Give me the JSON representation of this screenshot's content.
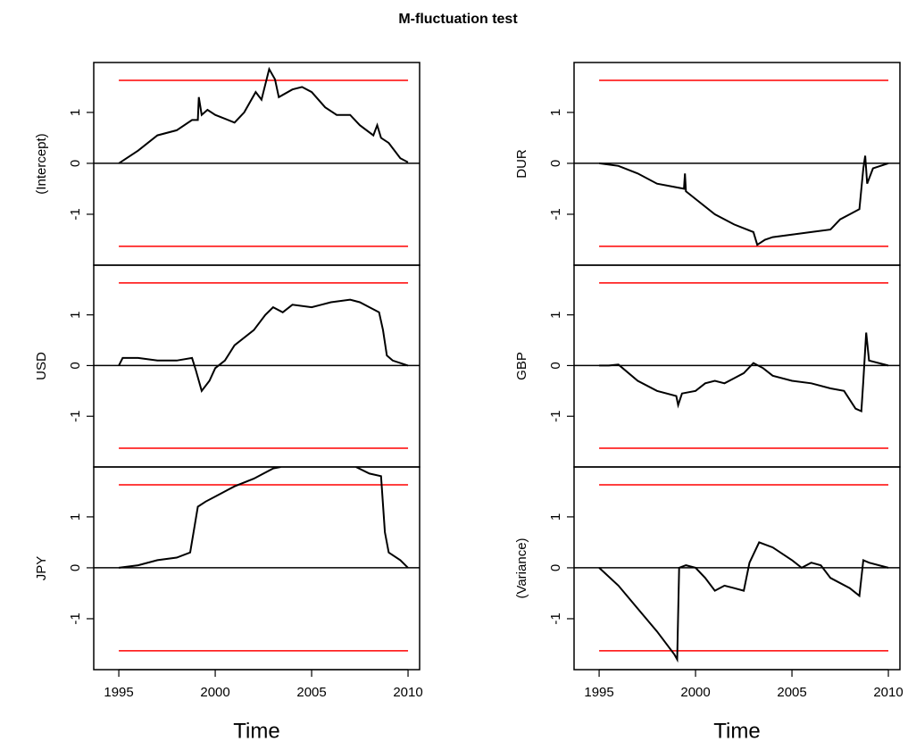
{
  "title": "M-fluctuation test",
  "chart_data": [
    {
      "type": "line",
      "ylabel": "(Intercept)",
      "color": "#000000",
      "boundary": [
        -1.63,
        1.63
      ],
      "boundary_color": "#ff0000",
      "reference_line": 0,
      "xlim": [
        1993.7,
        2010.6
      ],
      "ylim": [
        -2,
        1.98
      ],
      "yticks": [
        -1,
        0,
        1
      ],
      "x": [
        1995,
        1996,
        1997,
        1998,
        1998.8,
        1999.1,
        1999.15,
        1999.3,
        1999.6,
        2000,
        2001,
        2001.5,
        2002.1,
        2002.4,
        2002.8,
        2003.1,
        2003.3,
        2004,
        2004.5,
        2005,
        2005.7,
        2006.3,
        2007,
        2007.5,
        2008.2,
        2008.4,
        2008.6,
        2009,
        2009.6,
        2010
      ],
      "values": [
        0,
        0.25,
        0.55,
        0.65,
        0.85,
        0.85,
        1.3,
        0.95,
        1.05,
        0.95,
        0.8,
        1.0,
        1.4,
        1.25,
        1.85,
        1.65,
        1.3,
        1.45,
        1.5,
        1.4,
        1.1,
        0.95,
        0.95,
        0.75,
        0.55,
        0.75,
        0.5,
        0.4,
        0.1,
        0.02
      ]
    },
    {
      "type": "line",
      "ylabel": "DUR",
      "color": "#000000",
      "boundary": [
        -1.63,
        1.63
      ],
      "boundary_color": "#ff0000",
      "reference_line": 0,
      "xlim": [
        1993.7,
        2010.6
      ],
      "ylim": [
        -2,
        1.98
      ],
      "yticks": [
        -1,
        0,
        1
      ],
      "x": [
        1995,
        1996,
        1997,
        1998,
        1999.4,
        1999.45,
        1999.5,
        2000,
        2001,
        2002,
        2003,
        2003.2,
        2003.6,
        2004,
        2005,
        2006,
        2007,
        2007.5,
        2008,
        2008.5,
        2008.7,
        2008.8,
        2008.9,
        2009.2,
        2010
      ],
      "values": [
        0,
        -0.05,
        -0.2,
        -0.4,
        -0.5,
        -0.2,
        -0.55,
        -0.7,
        -1.0,
        -1.2,
        -1.35,
        -1.6,
        -1.5,
        -1.45,
        -1.4,
        -1.35,
        -1.3,
        -1.1,
        -1.0,
        -0.9,
        -0.1,
        0.15,
        -0.4,
        -0.1,
        0
      ]
    },
    {
      "type": "line",
      "ylabel": "USD",
      "color": "#000000",
      "boundary": [
        -1.63,
        1.63
      ],
      "boundary_color": "#ff0000",
      "reference_line": 0,
      "xlim": [
        1993.7,
        2010.6
      ],
      "ylim": [
        -2,
        1.98
      ],
      "yticks": [
        -1,
        0,
        1
      ],
      "x": [
        1995,
        1995.2,
        1996,
        1997,
        1998,
        1998.8,
        1999,
        1999.3,
        1999.7,
        2000,
        2000.5,
        2001,
        2002,
        2002.6,
        2003,
        2003.5,
        2004,
        2005,
        2005.5,
        2006,
        2007,
        2007.5,
        2008,
        2008.5,
        2008.7,
        2008.9,
        2009.2,
        2010
      ],
      "values": [
        0,
        0.15,
        0.15,
        0.1,
        0.1,
        0.15,
        -0.1,
        -0.5,
        -0.3,
        -0.05,
        0.1,
        0.4,
        0.7,
        1.0,
        1.15,
        1.05,
        1.2,
        1.15,
        1.2,
        1.25,
        1.3,
        1.25,
        1.15,
        1.05,
        0.7,
        0.2,
        0.1,
        0
      ]
    },
    {
      "type": "line",
      "ylabel": "GBP",
      "color": "#000000",
      "boundary": [
        -1.63,
        1.63
      ],
      "boundary_color": "#ff0000",
      "reference_line": 0,
      "xlim": [
        1993.7,
        2010.6
      ],
      "ylim": [
        -2,
        1.98
      ],
      "yticks": [
        -1,
        0,
        1
      ],
      "x": [
        1995,
        1995.5,
        1996,
        1997,
        1998,
        1999,
        1999.1,
        1999.3,
        2000,
        2000.5,
        2001,
        2001.5,
        2002,
        2002.5,
        2003,
        2003.5,
        2004,
        2005,
        2006,
        2007,
        2007.7,
        2008.3,
        2008.6,
        2008.7,
        2008.85,
        2009,
        2010
      ],
      "values": [
        0,
        0,
        0.02,
        -0.3,
        -0.5,
        -0.6,
        -0.78,
        -0.55,
        -0.5,
        -0.35,
        -0.3,
        -0.35,
        -0.25,
        -0.15,
        0.05,
        -0.05,
        -0.2,
        -0.3,
        -0.35,
        -0.45,
        -0.5,
        -0.85,
        -0.9,
        -0.3,
        0.65,
        0.1,
        0
      ]
    },
    {
      "type": "line",
      "ylabel": "JPY",
      "xlabel": "Time",
      "color": "#000000",
      "boundary": [
        -1.63,
        1.63
      ],
      "boundary_color": "#ff0000",
      "reference_line": 0,
      "xlim": [
        1993.7,
        2010.6
      ],
      "ylim": [
        -2,
        1.98
      ],
      "yticks": [
        -1,
        0,
        1
      ],
      "xticks": [
        1995,
        2000,
        2005,
        2010
      ],
      "x": [
        1995,
        1996,
        1997,
        1998,
        1998.7,
        1998.9,
        1999.1,
        1999.5,
        2000,
        2001,
        2002,
        2002.5,
        2003,
        2003.4,
        2005,
        2007.3,
        2008,
        2008.6,
        2008.8,
        2009,
        2009.6,
        2010
      ],
      "values": [
        0,
        0.05,
        0.15,
        0.2,
        0.3,
        0.75,
        1.2,
        1.3,
        1.4,
        1.6,
        1.75,
        1.85,
        1.95,
        1.98,
        null,
        1.98,
        1.85,
        1.8,
        0.7,
        0.3,
        0.15,
        0
      ]
    },
    {
      "type": "line",
      "ylabel": "(Variance)",
      "xlabel": "Time",
      "color": "#000000",
      "boundary": [
        -1.63,
        1.63
      ],
      "boundary_color": "#ff0000",
      "reference_line": 0,
      "xlim": [
        1993.7,
        2010.6
      ],
      "ylim": [
        -2,
        1.98
      ],
      "yticks": [
        -1,
        0,
        1
      ],
      "xticks": [
        1995,
        2000,
        2005,
        2010
      ],
      "x": [
        1995,
        1996,
        1997,
        1998,
        1998.9,
        1999.05,
        1999.15,
        1999.5,
        2000,
        2000.5,
        2001,
        2001.5,
        2002,
        2002.5,
        2002.8,
        2003.3,
        2004,
        2005,
        2005.5,
        2006,
        2006.5,
        2007,
        2008,
        2008.5,
        2008.7,
        2009,
        2010
      ],
      "values": [
        0,
        -0.35,
        -0.8,
        -1.25,
        -1.7,
        -1.8,
        0,
        0.05,
        0,
        -0.2,
        -0.45,
        -0.35,
        -0.4,
        -0.45,
        0.1,
        0.5,
        0.4,
        0.15,
        0,
        0.1,
        0.05,
        -0.2,
        -0.4,
        -0.55,
        0.15,
        0.1,
        0
      ]
    }
  ]
}
